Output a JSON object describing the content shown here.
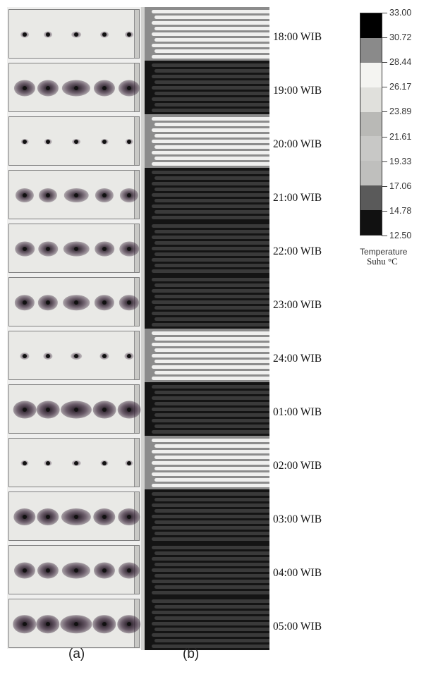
{
  "rows": [
    {
      "time": "18:00 WIB",
      "level": 0.15
    },
    {
      "time": "19:00 WIB",
      "level": 0.85
    },
    {
      "time": "20:00 WIB",
      "level": 0.1
    },
    {
      "time": "21:00 WIB",
      "level": 0.7
    },
    {
      "time": "22:00 WIB",
      "level": 0.75
    },
    {
      "time": "23:00 WIB",
      "level": 0.78
    },
    {
      "time": "24:00 WIB",
      "level": 0.2
    },
    {
      "time": "01:00 WIB",
      "level": 0.95
    },
    {
      "time": "02:00 WIB",
      "level": 0.12
    },
    {
      "time": "03:00 WIB",
      "level": 0.9
    },
    {
      "time": "04:00 WIB",
      "level": 0.85
    },
    {
      "time": "05:00 WIB",
      "level": 0.98
    }
  ],
  "panel_labels": {
    "a": "(a)",
    "b": "(b)"
  },
  "colorbar": {
    "ticks": [
      "33.00",
      "30.72",
      "28.44",
      "26.17",
      "23.89",
      "21.61",
      "19.33",
      "17.06",
      "14.78",
      "12.50"
    ],
    "title": "Temperature",
    "unit_text": "Suhu °C",
    "bands": [
      "#000000",
      "#8a8a8a",
      "#f4f4f1",
      "#e0e0dc",
      "#b9b9b6",
      "#c8c8c6",
      "#bfbfbd",
      "#5a5a5a",
      "#111111"
    ]
  }
}
